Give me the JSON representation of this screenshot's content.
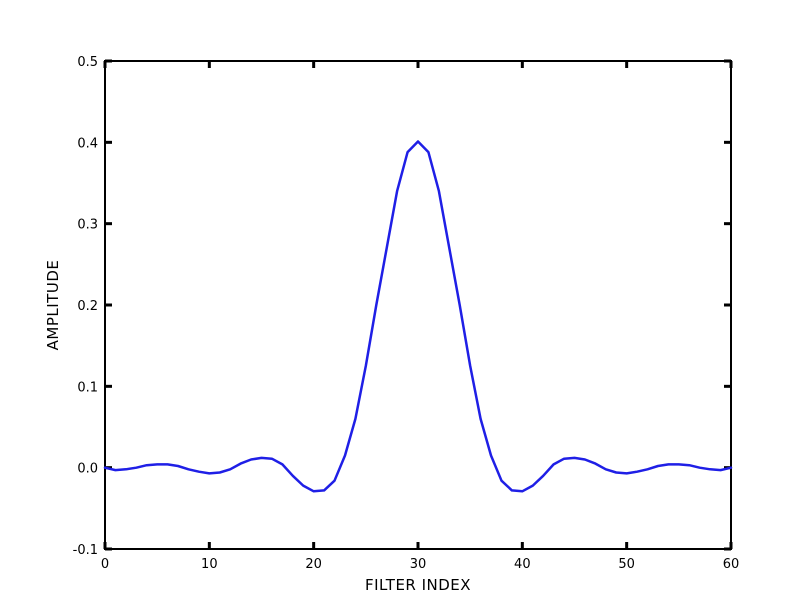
{
  "chart_data": {
    "type": "line",
    "title": "",
    "xlabel": "FILTER INDEX",
    "ylabel": "AMPLITUDE",
    "xlim": [
      0,
      60
    ],
    "ylim": [
      -0.1,
      0.5
    ],
    "grid": false,
    "line_color": "#1f1fe6",
    "xticks": [
      "0",
      "10",
      "20",
      "30",
      "40",
      "50",
      "60"
    ],
    "yticks": [
      "-0.1",
      "0.0",
      "0.1",
      "0.2",
      "0.3",
      "0.4",
      "0.5"
    ],
    "series": [
      {
        "x": [
          0,
          1,
          2,
          3,
          4,
          5,
          6,
          7,
          8,
          9,
          10,
          11,
          12,
          13,
          14,
          15,
          16,
          17,
          18,
          19,
          20,
          21,
          22,
          23,
          24,
          25,
          26,
          27,
          28,
          29,
          30,
          31,
          32,
          33,
          34,
          35,
          36,
          37,
          38,
          39,
          40,
          41,
          42,
          43,
          44,
          45,
          46,
          47,
          48,
          49,
          50,
          51,
          52,
          53,
          54,
          55,
          56,
          57,
          58,
          59,
          60
        ],
        "y": [
          0.0,
          -0.003,
          -0.002,
          0.0,
          0.003,
          0.004,
          0.004,
          0.002,
          -0.002,
          -0.005,
          -0.007,
          -0.006,
          -0.002,
          0.005,
          0.01,
          0.012,
          0.011,
          0.004,
          -0.01,
          -0.022,
          -0.029,
          -0.028,
          -0.016,
          0.015,
          0.06,
          0.125,
          0.2,
          0.27,
          0.34,
          0.388,
          0.401,
          0.388,
          0.34,
          0.27,
          0.2,
          0.125,
          0.06,
          0.015,
          -0.016,
          -0.028,
          -0.029,
          -0.022,
          -0.01,
          0.004,
          0.011,
          0.012,
          0.01,
          0.005,
          -0.002,
          -0.006,
          -0.007,
          -0.005,
          -0.002,
          0.002,
          0.004,
          0.004,
          0.003,
          0.0,
          -0.002,
          -0.003,
          0.0
        ]
      }
    ]
  }
}
